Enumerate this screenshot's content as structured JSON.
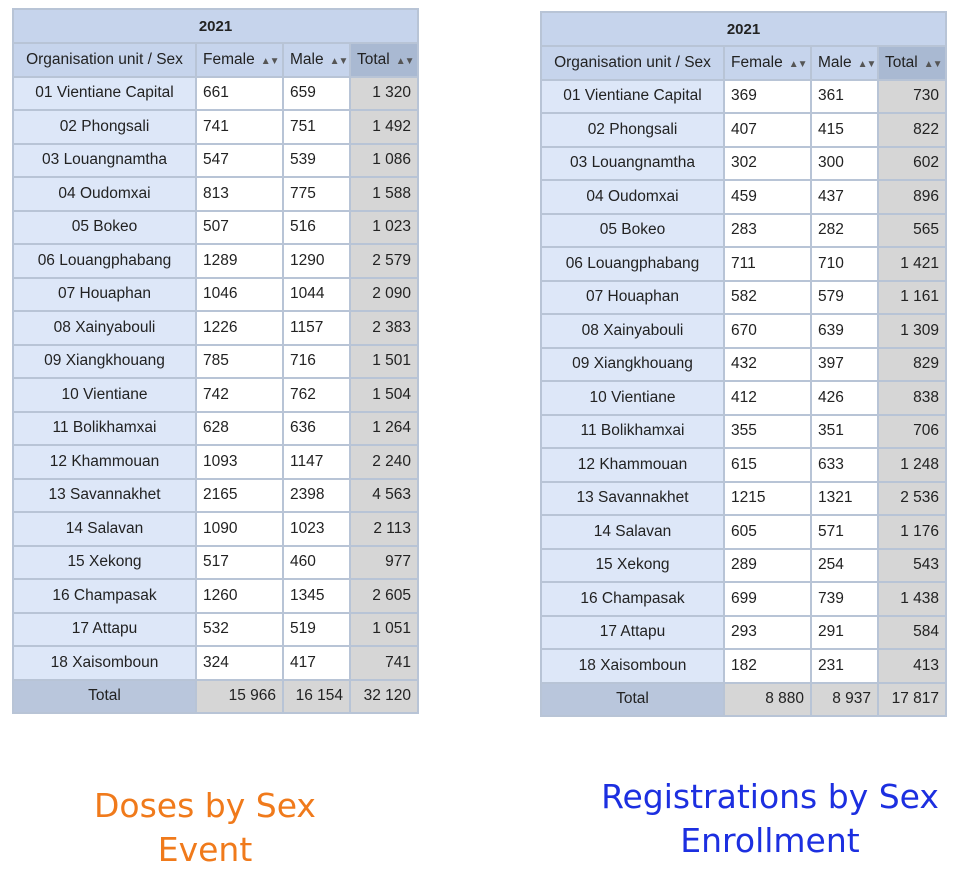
{
  "tables": [
    {
      "year": "2021",
      "headers": {
        "unit": "Organisation unit / Sex",
        "female": "Female",
        "male": "Male",
        "total": "Total"
      },
      "rows": [
        {
          "unit": "01 Vientiane Capital",
          "female": "661",
          "male": "659",
          "total": "1 320"
        },
        {
          "unit": "02 Phongsali",
          "female": "741",
          "male": "751",
          "total": "1 492"
        },
        {
          "unit": "03 Louangnamtha",
          "female": "547",
          "male": "539",
          "total": "1 086"
        },
        {
          "unit": "04 Oudomxai",
          "female": "813",
          "male": "775",
          "total": "1 588"
        },
        {
          "unit": "05 Bokeo",
          "female": "507",
          "male": "516",
          "total": "1 023"
        },
        {
          "unit": "06 Louangphabang",
          "female": "1289",
          "male": "1290",
          "total": "2 579"
        },
        {
          "unit": "07 Houaphan",
          "female": "1046",
          "male": "1044",
          "total": "2 090"
        },
        {
          "unit": "08 Xainyabouli",
          "female": "1226",
          "male": "1157",
          "total": "2 383"
        },
        {
          "unit": "09 Xiangkhouang",
          "female": "785",
          "male": "716",
          "total": "1 501"
        },
        {
          "unit": "10 Vientiane",
          "female": "742",
          "male": "762",
          "total": "1 504"
        },
        {
          "unit": "11 Bolikhamxai",
          "female": "628",
          "male": "636",
          "total": "1 264"
        },
        {
          "unit": "12 Khammouan",
          "female": "1093",
          "male": "1147",
          "total": "2 240"
        },
        {
          "unit": "13 Savannakhet",
          "female": "2165",
          "male": "2398",
          "total": "4 563"
        },
        {
          "unit": "14 Salavan",
          "female": "1090",
          "male": "1023",
          "total": "2 113"
        },
        {
          "unit": "15 Xekong",
          "female": "517",
          "male": "460",
          "total": "977"
        },
        {
          "unit": "16 Champasak",
          "female": "1260",
          "male": "1345",
          "total": "2 605"
        },
        {
          "unit": "17 Attapu",
          "female": "532",
          "male": "519",
          "total": "1 051"
        },
        {
          "unit": "18 Xaisomboun",
          "female": "324",
          "male": "417",
          "total": "741"
        }
      ],
      "grand_total": {
        "label": "Total",
        "female": "15 966",
        "male": "16 154",
        "total": "32 120"
      },
      "caption": [
        "Doses by Sex",
        "Event"
      ]
    },
    {
      "year": "2021",
      "headers": {
        "unit": "Organisation unit / Sex",
        "female": "Female",
        "male": "Male",
        "total": "Total"
      },
      "rows": [
        {
          "unit": "01 Vientiane Capital",
          "female": "369",
          "male": "361",
          "total": "730"
        },
        {
          "unit": "02 Phongsali",
          "female": "407",
          "male": "415",
          "total": "822"
        },
        {
          "unit": "03 Louangnamtha",
          "female": "302",
          "male": "300",
          "total": "602"
        },
        {
          "unit": "04 Oudomxai",
          "female": "459",
          "male": "437",
          "total": "896"
        },
        {
          "unit": "05 Bokeo",
          "female": "283",
          "male": "282",
          "total": "565"
        },
        {
          "unit": "06 Louangphabang",
          "female": "711",
          "male": "710",
          "total": "1 421"
        },
        {
          "unit": "07 Houaphan",
          "female": "582",
          "male": "579",
          "total": "1 161"
        },
        {
          "unit": "08 Xainyabouli",
          "female": "670",
          "male": "639",
          "total": "1 309"
        },
        {
          "unit": "09 Xiangkhouang",
          "female": "432",
          "male": "397",
          "total": "829"
        },
        {
          "unit": "10 Vientiane",
          "female": "412",
          "male": "426",
          "total": "838"
        },
        {
          "unit": "11 Bolikhamxai",
          "female": "355",
          "male": "351",
          "total": "706"
        },
        {
          "unit": "12 Khammouan",
          "female": "615",
          "male": "633",
          "total": "1 248"
        },
        {
          "unit": "13 Savannakhet",
          "female": "1215",
          "male": "1321",
          "total": "2 536"
        },
        {
          "unit": "14 Salavan",
          "female": "605",
          "male": "571",
          "total": "1 176"
        },
        {
          "unit": "15 Xekong",
          "female": "289",
          "male": "254",
          "total": "543"
        },
        {
          "unit": "16 Champasak",
          "female": "699",
          "male": "739",
          "total": "1 438"
        },
        {
          "unit": "17 Attapu",
          "female": "293",
          "male": "291",
          "total": "584"
        },
        {
          "unit": "18 Xaisomboun",
          "female": "182",
          "male": "231",
          "total": "413"
        }
      ],
      "grand_total": {
        "label": "Total",
        "female": "8 880",
        "male": "8 937",
        "total": "17 817"
      },
      "caption": [
        "Registrations by Sex",
        "Enrollment"
      ]
    }
  ],
  "icons": {
    "sort": "sort-arrows-icon"
  },
  "colors": {
    "caption_left": "#f07a1b",
    "caption_right": "#1c2fe0",
    "header_bg": "#c6d4ec",
    "unit_bg": "#dde7f8",
    "total_bg": "#d6d6d6"
  }
}
